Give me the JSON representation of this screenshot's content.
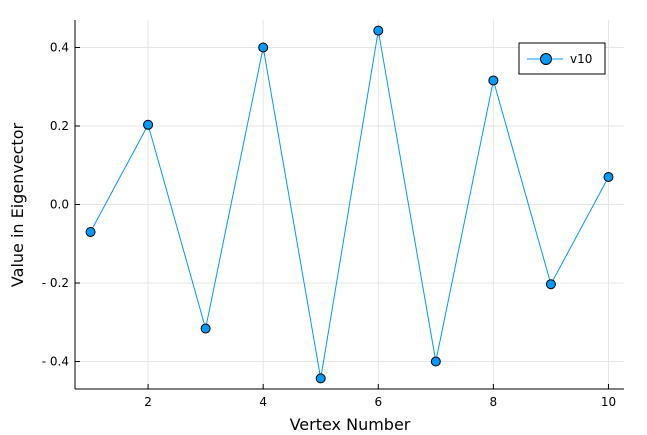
{
  "chart_data": {
    "type": "line",
    "title": "",
    "xlabel": "Vertex Number",
    "ylabel": "Value in Eigenvector",
    "x": [
      1,
      2,
      3,
      4,
      5,
      6,
      7,
      8,
      9,
      10
    ],
    "series": [
      {
        "name": "v10",
        "values": [
          -0.07,
          0.203,
          -0.316,
          0.4,
          -0.443,
          0.443,
          -0.4,
          0.316,
          -0.203,
          0.07
        ],
        "color": "#009AFA",
        "marker": "circle"
      }
    ],
    "xticks": [
      2,
      4,
      6,
      8,
      10
    ],
    "xtick_labels": [
      "2",
      "4",
      "6",
      "8",
      "10"
    ],
    "yticks": [
      -0.4,
      -0.2,
      0.0,
      0.2,
      0.4
    ],
    "ytick_labels": [
      "- 0.4",
      "- 0.2",
      "0.0",
      "0.2",
      "0.4"
    ],
    "xlim": [
      0.73,
      10.27
    ],
    "ylim": [
      -0.47,
      0.47
    ],
    "grid": true,
    "legend_position": "top-right"
  }
}
